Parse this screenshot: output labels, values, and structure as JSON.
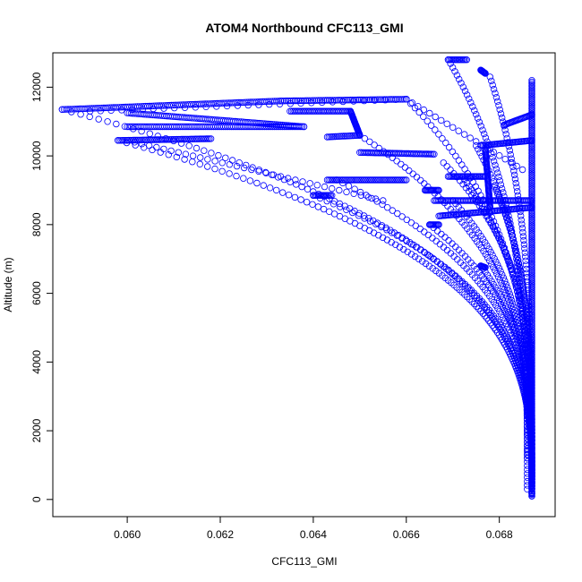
{
  "chart_data": {
    "type": "scatter",
    "title": "ATOM4 Northbound CFC113_GMI",
    "xlabel": "CFC113_GMI",
    "ylabel": "Altitude (m)",
    "xlim": [
      0.0584,
      0.0692
    ],
    "ylim": [
      -500,
      13000
    ],
    "x_ticks": [
      0.06,
      0.062,
      0.064,
      0.066,
      0.068
    ],
    "x_tick_labels": [
      "0.060",
      "0.062",
      "0.064",
      "0.066",
      "0.068"
    ],
    "y_ticks": [
      0,
      2000,
      4000,
      6000,
      8000,
      10000,
      12000
    ],
    "y_tick_labels": [
      "0",
      "2000",
      "4000",
      "6000",
      "8000",
      "10000",
      "12000"
    ],
    "grid": false,
    "legend": "none",
    "marker": "open-circle",
    "color": "#0000ff",
    "series": [
      {
        "profiles": [
          {
            "x0": 0.0687,
            "y0": 100,
            "x1": 0.0586,
            "y1": 11350,
            "n": 160
          },
          {
            "x0": 0.0687,
            "y0": 100,
            "x1": 0.0598,
            "y1": 10450,
            "n": 150
          },
          {
            "x0": 0.0687,
            "y0": 200,
            "x1": 0.066,
            "y1": 11650,
            "n": 90
          },
          {
            "x0": 0.0686,
            "y0": 300,
            "x1": 0.0669,
            "y1": 12800,
            "n": 110
          },
          {
            "x0": 0.0687,
            "y0": 400,
            "x1": 0.0678,
            "y1": 12300,
            "n": 100
          },
          {
            "x0": 0.0687,
            "y0": 300,
            "x1": 0.065,
            "y1": 10600,
            "n": 110
          },
          {
            "x0": 0.0687,
            "y0": 400,
            "x1": 0.0645,
            "y1": 9300,
            "n": 100
          },
          {
            "x0": 0.0687,
            "y0": 500,
            "x1": 0.064,
            "y1": 8850,
            "n": 100
          },
          {
            "x0": 0.0687,
            "y0": 600,
            "x1": 0.0665,
            "y1": 8000,
            "n": 80
          },
          {
            "x0": 0.0687,
            "y0": 500,
            "x1": 0.0676,
            "y1": 6800,
            "n": 70
          },
          {
            "x0": 0.0687,
            "y0": 800,
            "x1": 0.0672,
            "y1": 9400,
            "n": 90
          },
          {
            "x0": 0.0687,
            "y0": 900,
            "x1": 0.0675,
            "y1": 10300,
            "n": 90
          },
          {
            "x0": 0.0687,
            "y0": 1000,
            "x1": 0.0679,
            "y1": 9100,
            "n": 80
          },
          {
            "x0": 0.0686,
            "y0": 1200,
            "x1": 0.067,
            "y1": 8700,
            "n": 80
          },
          {
            "x0": 0.0687,
            "y0": 1500,
            "x1": 0.0668,
            "y1": 9800,
            "n": 80
          }
        ],
        "legs": [
          {
            "x0": 0.0586,
            "y0": 11350,
            "x1": 0.0633,
            "y1": 11600,
            "n": 110
          },
          {
            "x0": 0.06,
            "y0": 11250,
            "x1": 0.0638,
            "y1": 10850,
            "n": 90
          },
          {
            "x0": 0.0598,
            "y0": 10450,
            "x1": 0.0618,
            "y1": 10500,
            "n": 60
          },
          {
            "x0": 0.06,
            "y0": 10850,
            "x1": 0.0638,
            "y1": 10850,
            "n": 90
          },
          {
            "x0": 0.0633,
            "y0": 11600,
            "x1": 0.066,
            "y1": 11650,
            "n": 70
          },
          {
            "x0": 0.0643,
            "y0": 9300,
            "x1": 0.066,
            "y1": 9300,
            "n": 50
          },
          {
            "x0": 0.064,
            "y0": 8850,
            "x1": 0.0644,
            "y1": 8850,
            "n": 15
          },
          {
            "x0": 0.0643,
            "y0": 10550,
            "x1": 0.065,
            "y1": 10600,
            "n": 20
          },
          {
            "x0": 0.0648,
            "y0": 11300,
            "x1": 0.065,
            "y1": 10600,
            "n": 30
          },
          {
            "x0": 0.0635,
            "y0": 11300,
            "x1": 0.0648,
            "y1": 11300,
            "n": 40
          },
          {
            "x0": 0.065,
            "y0": 10100,
            "x1": 0.0666,
            "y1": 10050,
            "n": 50
          },
          {
            "x0": 0.0666,
            "y0": 8700,
            "x1": 0.0687,
            "y1": 8700,
            "n": 70
          },
          {
            "x0": 0.0667,
            "y0": 8250,
            "x1": 0.0687,
            "y1": 8500,
            "n": 70
          },
          {
            "x0": 0.0676,
            "y0": 10300,
            "x1": 0.0687,
            "y1": 10450,
            "n": 40
          },
          {
            "x0": 0.0669,
            "y0": 12800,
            "x1": 0.0673,
            "y1": 12800,
            "n": 15
          },
          {
            "x0": 0.0676,
            "y0": 12500,
            "x1": 0.0677,
            "y1": 12400,
            "n": 10
          },
          {
            "x0": 0.0669,
            "y0": 9400,
            "x1": 0.0677,
            "y1": 9400,
            "n": 30
          },
          {
            "x0": 0.0664,
            "y0": 9000,
            "x1": 0.0667,
            "y1": 9000,
            "n": 15
          },
          {
            "x0": 0.0665,
            "y0": 8000,
            "x1": 0.0667,
            "y1": 8000,
            "n": 10
          },
          {
            "x0": 0.0676,
            "y0": 6800,
            "x1": 0.0677,
            "y1": 6750,
            "n": 8
          },
          {
            "x0": 0.0681,
            "y0": 10900,
            "x1": 0.0687,
            "y1": 11200,
            "n": 25
          },
          {
            "x0": 0.0677,
            "y0": 10200,
            "x1": 0.0678,
            "y1": 8500,
            "n": 60
          },
          {
            "x0": 0.0687,
            "y0": 100,
            "x1": 0.0687,
            "y1": 12200,
            "n": 260
          }
        ],
        "dotted": [
          {
            "x0": 0.0592,
            "y0": 11300,
            "x1": 0.066,
            "y1": 11650,
            "n": 30
          },
          {
            "x0": 0.066,
            "y0": 11650,
            "x1": 0.0685,
            "y1": 9600,
            "n": 20
          },
          {
            "x0": 0.06,
            "y0": 10450,
            "x1": 0.0655,
            "y1": 8700,
            "n": 35
          }
        ]
      }
    ]
  }
}
